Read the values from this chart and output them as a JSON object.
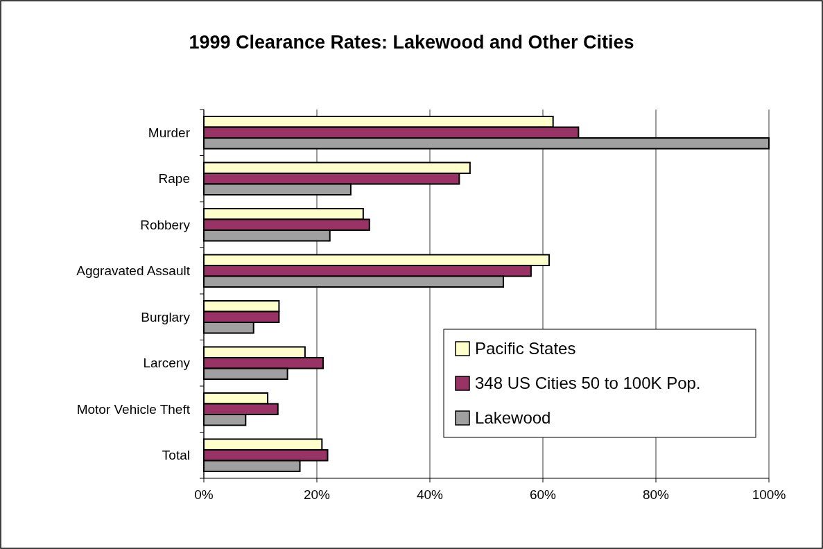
{
  "chart_data": {
    "type": "bar",
    "orientation": "horizontal",
    "title": "1999 Clearance Rates: Lakewood and Other Cities",
    "categories": [
      "Murder",
      "Rape",
      "Robbery",
      "Aggravated Assault",
      "Burglary",
      "Larceny",
      "Motor Vehicle Theft",
      "Total"
    ],
    "series": [
      {
        "name": "Pacific States",
        "color": "#ffffcc",
        "values": [
          61.8,
          47.1,
          28.2,
          61.1,
          13.3,
          17.9,
          11.3,
          20.9
        ]
      },
      {
        "name": "348 US Cities 50 to 100K Pop.",
        "color": "#993366",
        "values": [
          66.3,
          45.2,
          29.3,
          57.9,
          13.3,
          21.1,
          13.1,
          21.9
        ]
      },
      {
        "name": "Lakewood",
        "color": "#a0a0a0",
        "values": [
          100,
          26.0,
          22.3,
          53.0,
          8.8,
          14.8,
          7.4,
          17.0
        ]
      }
    ],
    "xlim": [
      0,
      100
    ],
    "xticks": [
      {
        "value": 0,
        "label": "0%"
      },
      {
        "value": 20,
        "label": "20%"
      },
      {
        "value": 40,
        "label": "40%"
      },
      {
        "value": 60,
        "label": "60%"
      },
      {
        "value": 80,
        "label": "80%"
      },
      {
        "value": 100,
        "label": "100%"
      }
    ],
    "grid": "x",
    "legend": "bottom right"
  }
}
